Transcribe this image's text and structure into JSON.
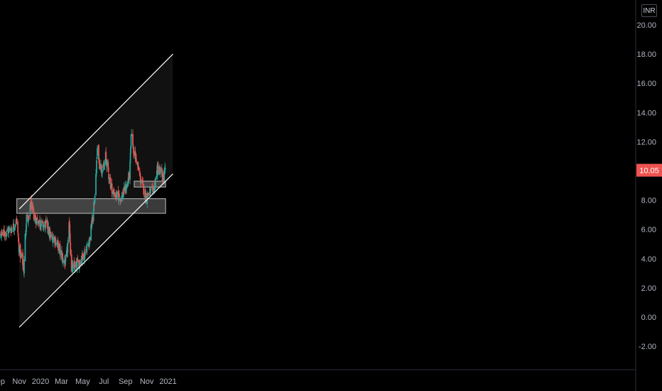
{
  "colors": {
    "background": "#000000",
    "up_candle": "#26a69a",
    "down_candle": "#ef5350",
    "price_badge": "#ef5350",
    "channel_line": "#ffffff",
    "zone_fill": "#808080",
    "axis_text": "#b2b5be"
  },
  "currency": "INR",
  "chart_data": {
    "type": "candlestick",
    "title": "",
    "current_price": "10.05",
    "y_ticks": [
      "20.00",
      "18.00",
      "16.00",
      "14.00",
      "12.00",
      "10.00",
      "8.00",
      "6.00",
      "4.00",
      "2.00",
      "0.00",
      "-2.00"
    ],
    "x_ticks": [
      "Sep",
      "Nov",
      "2020",
      "Mar",
      "May",
      "Jul",
      "Sep",
      "Nov",
      "2021"
    ],
    "ylim": [
      -3.7,
      21.6
    ],
    "price_path_keypoints": [
      [
        "2019-08-18",
        6.3
      ],
      [
        "2019-09-05",
        5.6
      ],
      [
        "2019-09-25",
        5.8
      ],
      [
        "2019-10-12",
        6.1
      ],
      [
        "2019-10-25",
        6.6
      ],
      [
        "2019-11-01",
        4.5
      ],
      [
        "2019-11-10",
        3.9
      ],
      [
        "2019-11-14",
        3.2
      ],
      [
        "2019-11-18",
        5.5
      ],
      [
        "2019-11-22",
        7.0
      ],
      [
        "2019-11-28",
        6.5
      ],
      [
        "2019-12-04",
        7.8
      ],
      [
        "2019-12-12",
        7.0
      ],
      [
        "2019-12-22",
        6.6
      ],
      [
        "2020-01-05",
        6.3
      ],
      [
        "2020-01-20",
        6.3
      ],
      [
        "2020-01-28",
        5.5
      ],
      [
        "2020-02-10",
        5.4
      ],
      [
        "2020-02-25",
        4.6
      ],
      [
        "2020-03-05",
        4.0
      ],
      [
        "2020-03-12",
        3.6
      ],
      [
        "2020-03-20",
        5.0
      ],
      [
        "2020-03-24",
        6.5
      ],
      [
        "2020-03-29",
        3.3
      ],
      [
        "2020-04-10",
        3.4
      ],
      [
        "2020-04-22",
        3.8
      ],
      [
        "2020-05-05",
        4.3
      ],
      [
        "2020-05-20",
        5.2
      ],
      [
        "2020-06-01",
        7.2
      ],
      [
        "2020-06-08",
        9.5
      ],
      [
        "2020-06-13",
        12.0
      ],
      [
        "2020-06-18",
        10.5
      ],
      [
        "2020-06-30",
        10.0
      ],
      [
        "2020-07-06",
        11.0
      ],
      [
        "2020-07-18",
        9.3
      ],
      [
        "2020-07-28",
        8.5
      ],
      [
        "2020-08-05",
        8.3
      ],
      [
        "2020-08-20",
        8.2
      ],
      [
        "2020-09-01",
        8.8
      ],
      [
        "2020-09-08",
        9.2
      ],
      [
        "2020-09-14",
        10.3
      ],
      [
        "2020-09-18",
        12.8
      ],
      [
        "2020-09-25",
        11.3
      ],
      [
        "2020-10-02",
        10.8
      ],
      [
        "2020-10-12",
        9.6
      ],
      [
        "2020-10-22",
        8.8
      ],
      [
        "2020-10-30",
        8.2
      ],
      [
        "2020-11-06",
        8.5
      ],
      [
        "2020-11-16",
        8.5
      ],
      [
        "2020-11-25",
        9.2
      ],
      [
        "2020-12-02",
        10.2
      ],
      [
        "2020-12-10",
        9.9
      ],
      [
        "2020-12-18",
        9.5
      ],
      [
        "2020-12-24",
        10.05
      ]
    ],
    "up_candle_up_probability": 0.5,
    "annotations": {
      "channel_upper": {
        "from": [
          "2019-11-01",
          7.4
        ],
        "to": [
          "2021-01-15",
          18.0
        ]
      },
      "channel_lower": {
        "from": [
          "2019-11-01",
          -0.7
        ],
        "to": [
          "2021-01-15",
          9.8
        ]
      },
      "support_zone": {
        "from_date": "2019-10-25",
        "to_date": "2020-12-25",
        "top": 8.1,
        "bottom": 7.1
      },
      "resistance_zone": {
        "from_date": "2020-09-26",
        "to_date": "2020-12-25",
        "top": 9.3,
        "bottom": 8.9
      }
    }
  }
}
